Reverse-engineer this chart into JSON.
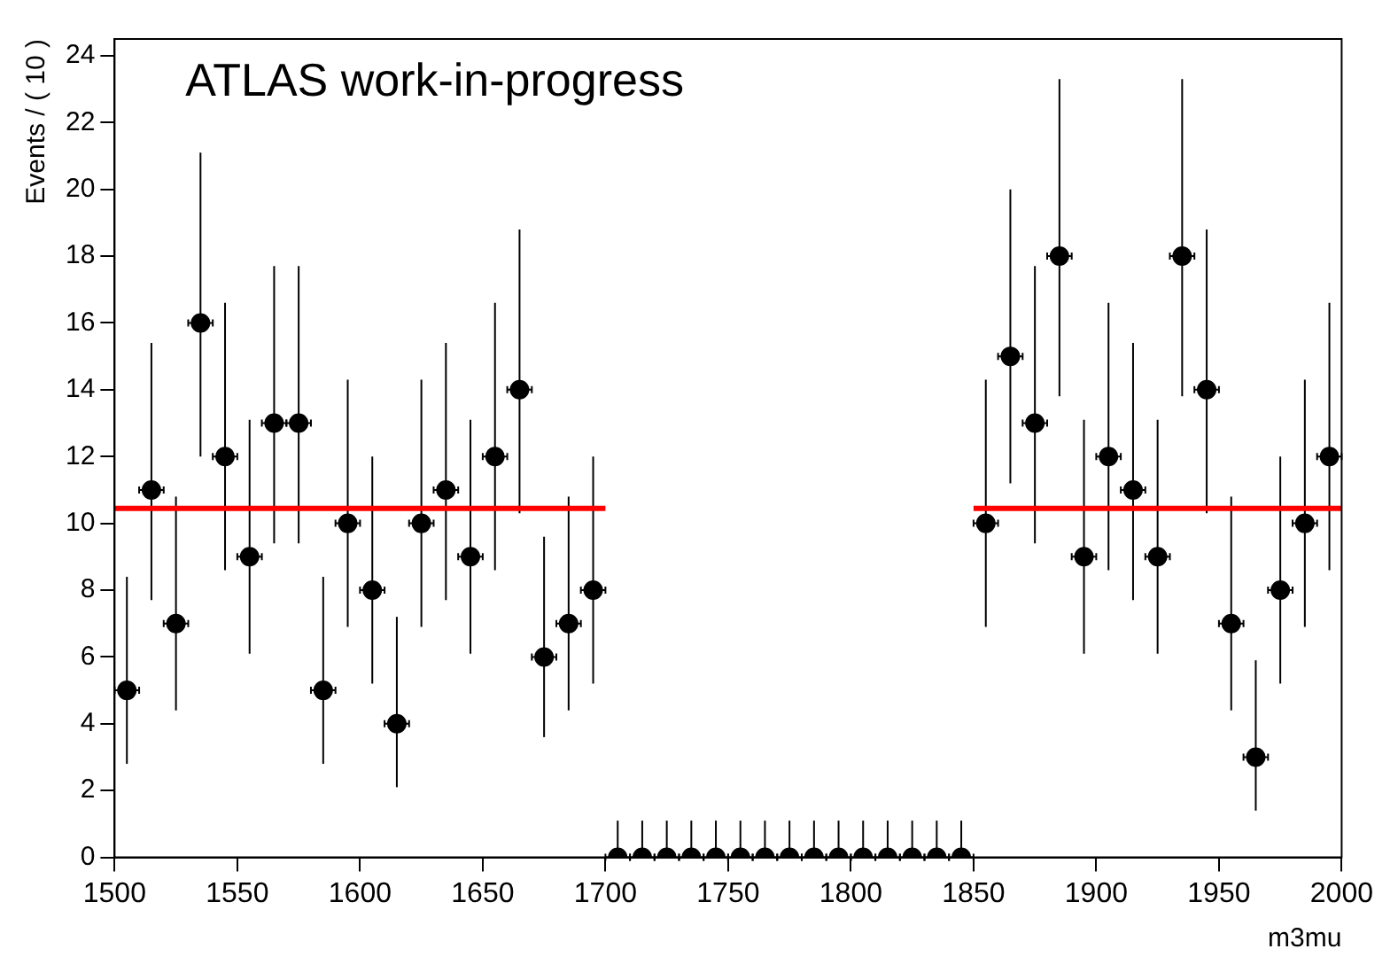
{
  "chart_data": {
    "type": "scatter",
    "xlabel": "m3mu",
    "ylabel": "Events / ( 10 )",
    "annotations": [
      "ATLAS work-in-progress"
    ],
    "xlim": [
      1500,
      2000
    ],
    "xticks": [
      1500,
      1550,
      1600,
      1650,
      1700,
      1750,
      1800,
      1850,
      1900,
      1950,
      2000
    ],
    "ylim": [
      0,
      24.5
    ],
    "yticks": [
      0,
      2,
      4,
      6,
      8,
      10,
      12,
      14,
      16,
      18,
      20,
      22,
      24
    ],
    "grid": false,
    "legend": false,
    "marker": "circle",
    "series": [
      {
        "color": "#000000",
        "x": [
          1505,
          1515,
          1525,
          1535,
          1545,
          1555,
          1565,
          1575,
          1585,
          1595,
          1605,
          1615,
          1625,
          1635,
          1645,
          1655,
          1665,
          1675,
          1685,
          1695,
          1705,
          1715,
          1725,
          1735,
          1745,
          1755,
          1765,
          1775,
          1785,
          1795,
          1805,
          1815,
          1825,
          1835,
          1845,
          1855,
          1865,
          1875,
          1885,
          1895,
          1905,
          1915,
          1925,
          1935,
          1945,
          1955,
          1965,
          1975,
          1985,
          1995
        ],
        "values": [
          5,
          11,
          7,
          16,
          12,
          9,
          13,
          13,
          5,
          10,
          8,
          4,
          10,
          11,
          9,
          12,
          14,
          6,
          7,
          8,
          0,
          0,
          0,
          0,
          0,
          0,
          0,
          0,
          0,
          0,
          0,
          0,
          0,
          0,
          0,
          10,
          15,
          13,
          18,
          9,
          12,
          11,
          9,
          18,
          14,
          7,
          3,
          8,
          10,
          12
        ],
        "errors": [
          [
            2.8,
            8.4
          ],
          [
            7.7,
            15.4
          ],
          [
            4.4,
            10.8
          ],
          [
            12.0,
            21.1
          ],
          [
            8.6,
            16.6
          ],
          [
            6.1,
            13.1
          ],
          [
            9.4,
            17.7
          ],
          [
            9.4,
            17.7
          ],
          [
            2.8,
            8.4
          ],
          [
            6.9,
            14.3
          ],
          [
            5.2,
            12.0
          ],
          [
            2.1,
            7.2
          ],
          [
            6.9,
            14.3
          ],
          [
            7.7,
            15.4
          ],
          [
            6.1,
            13.1
          ],
          [
            8.6,
            16.6
          ],
          [
            10.3,
            18.8
          ],
          [
            3.6,
            9.6
          ],
          [
            4.4,
            10.8
          ],
          [
            5.2,
            12.0
          ],
          [
            0,
            1.1
          ],
          [
            0,
            1.1
          ],
          [
            0,
            1.1
          ],
          [
            0,
            1.1
          ],
          [
            0,
            1.1
          ],
          [
            0,
            1.1
          ],
          [
            0,
            1.1
          ],
          [
            0,
            1.1
          ],
          [
            0,
            1.1
          ],
          [
            0,
            1.1
          ],
          [
            0,
            1.1
          ],
          [
            0,
            1.1
          ],
          [
            0,
            1.1
          ],
          [
            0,
            1.1
          ],
          [
            0,
            1.1
          ],
          [
            6.9,
            14.3
          ],
          [
            11.2,
            20.0
          ],
          [
            9.4,
            17.7
          ],
          [
            13.8,
            23.3
          ],
          [
            6.1,
            13.1
          ],
          [
            8.6,
            16.6
          ],
          [
            7.7,
            15.4
          ],
          [
            6.1,
            13.1
          ],
          [
            13.8,
            23.3
          ],
          [
            10.3,
            18.8
          ],
          [
            4.4,
            10.8
          ],
          [
            1.4,
            5.9
          ],
          [
            5.2,
            12.0
          ],
          [
            6.9,
            14.3
          ],
          [
            8.6,
            16.6
          ]
        ],
        "xerrors": [
          5,
          5,
          5,
          5,
          5,
          5,
          5,
          5,
          5,
          5,
          5,
          5,
          5,
          5,
          5,
          5,
          5,
          5,
          5,
          5,
          5,
          5,
          5,
          5,
          5,
          5,
          5,
          5,
          5,
          5,
          5,
          5,
          5,
          5,
          5,
          5,
          5,
          5,
          5,
          5,
          5,
          5,
          5,
          5,
          5,
          5,
          5,
          5,
          5,
          5
        ]
      },
      {
        "type": "line",
        "color": "#ff0000",
        "marker": "none",
        "line_style": "solid",
        "x": [
          1500,
          1700
        ],
        "values": [
          10.45,
          10.45
        ]
      },
      {
        "type": "line",
        "color": "#ff0000",
        "marker": "none",
        "line_style": "solid",
        "x": [
          1850,
          2000
        ],
        "values": [
          10.45,
          10.45
        ]
      }
    ]
  }
}
